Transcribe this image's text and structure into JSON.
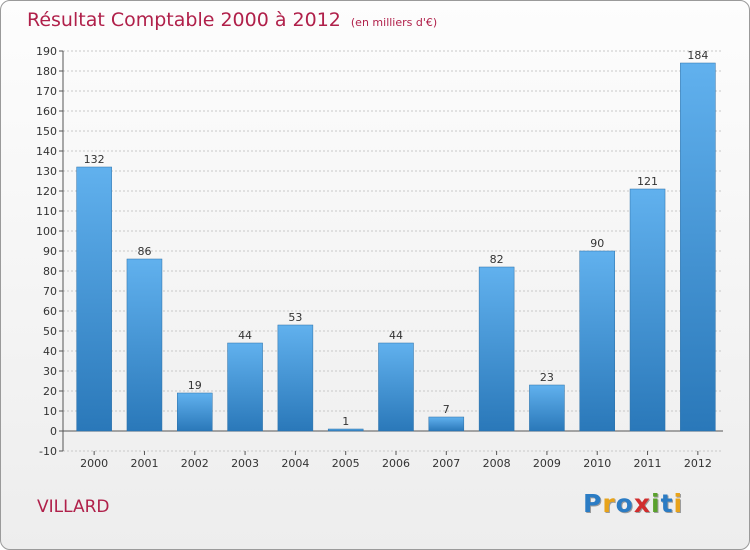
{
  "header": {
    "title": "Résultat Comptable 2000 à 2012",
    "subtitle": "(en milliers d'€)"
  },
  "footer": {
    "town": "VILLARD",
    "logo_letters": [
      {
        "ch": "P",
        "color": "#2b7cc4"
      },
      {
        "ch": "r",
        "color": "#e8a31a"
      },
      {
        "ch": "o",
        "color": "#2b7cc4"
      },
      {
        "ch": "x",
        "color": "#d12d2d"
      },
      {
        "ch": "i",
        "color": "#5aa12d"
      },
      {
        "ch": "t",
        "color": "#2b7cc4"
      },
      {
        "ch": "i",
        "color": "#e8a31a"
      }
    ]
  },
  "colors": {
    "bar_light": "#61b1ee",
    "bar_dark": "#2a78b9",
    "title": "#b0204a"
  },
  "chart_data": {
    "type": "bar",
    "title": "Résultat Comptable 2000 à 2012",
    "subtitle": "(en milliers d'€)",
    "xlabel": "",
    "ylabel": "",
    "categories": [
      "2000",
      "2001",
      "2002",
      "2003",
      "2004",
      "2005",
      "2006",
      "2007",
      "2008",
      "2009",
      "2010",
      "2011",
      "2012"
    ],
    "values": [
      132,
      86,
      19,
      44,
      53,
      1,
      44,
      7,
      82,
      23,
      90,
      121,
      184
    ],
    "ylim": [
      -10,
      190
    ],
    "yticks": [
      -10,
      0,
      10,
      20,
      30,
      40,
      50,
      60,
      70,
      80,
      90,
      100,
      110,
      120,
      130,
      140,
      150,
      160,
      170,
      180,
      190
    ],
    "grid": true
  }
}
